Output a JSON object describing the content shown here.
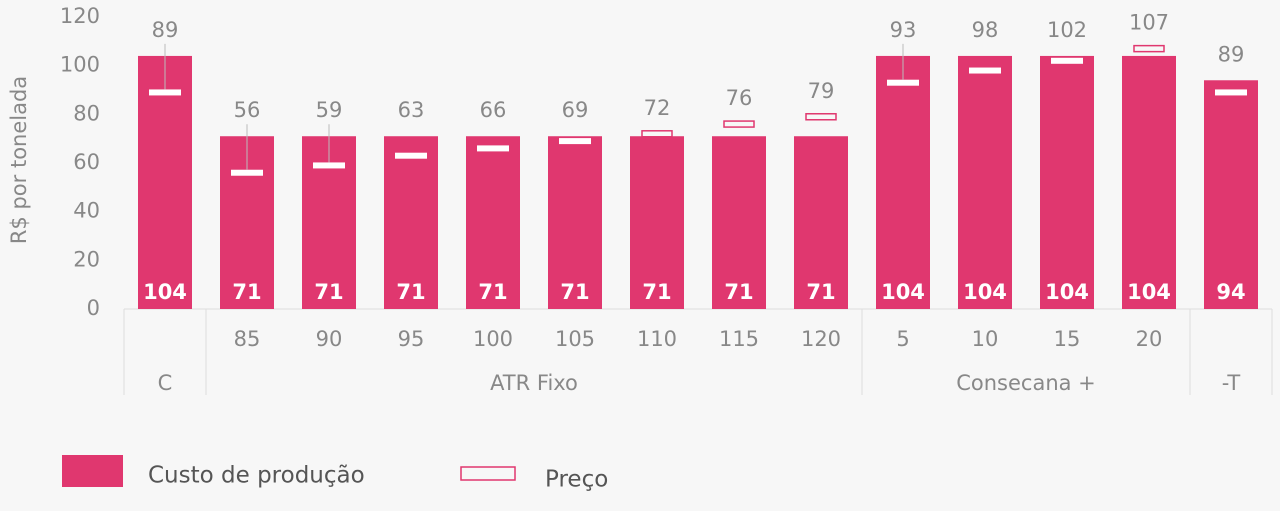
{
  "chart_data": {
    "type": "bar",
    "y_label": "R$ por tonelada",
    "categories": [
      null,
      "85",
      "90",
      "95",
      "100",
      "105",
      "110",
      "115",
      "120",
      "5",
      "10",
      "15",
      "20",
      null
    ],
    "groups": [
      {
        "label": "C",
        "size": 1
      },
      {
        "label": "ATR Fixo",
        "size": 8
      },
      {
        "label": "Consecana +",
        "size": 4
      },
      {
        "label": "-T",
        "size": 1
      }
    ],
    "series": [
      {
        "name": "Custo de produção",
        "color": "#e0376f",
        "values": [
          104,
          71,
          71,
          71,
          71,
          71,
          71,
          71,
          71,
          104,
          104,
          104,
          104,
          94
        ]
      },
      {
        "name": "Preço",
        "color": "#e0376f",
        "values": [
          89,
          56,
          59,
          63,
          66,
          69,
          72,
          76,
          79,
          93,
          98,
          102,
          107,
          89
        ]
      }
    ],
    "ylim": [
      0,
      120
    ],
    "yticks": [
      0,
      20,
      40,
      60,
      80,
      100,
      120
    ],
    "grid": false
  }
}
